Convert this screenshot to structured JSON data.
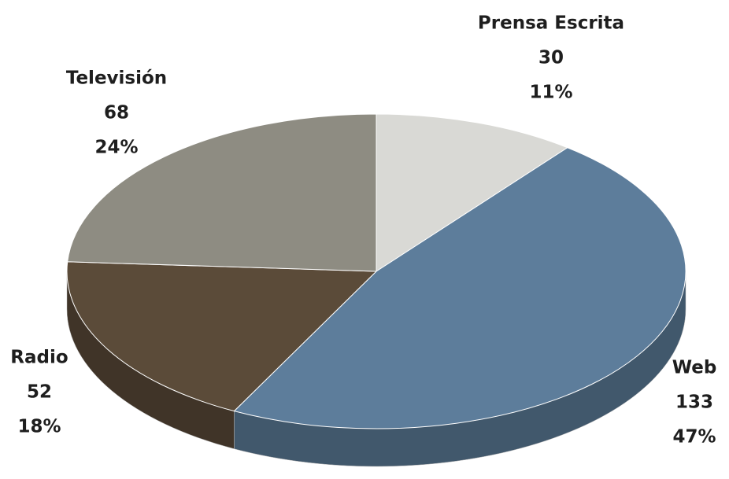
{
  "chart_data": {
    "type": "pie",
    "categories": [
      "Prensa Escrita",
      "Web",
      "Radio",
      "Televisión"
    ],
    "values": [
      30,
      133,
      52,
      68
    ],
    "percent_labels": [
      "11%",
      "47%",
      "18%",
      "24%"
    ],
    "colors": [
      "#d9d9d5",
      "#5d7d9b",
      "#5b4b39",
      "#8e8c82"
    ]
  }
}
